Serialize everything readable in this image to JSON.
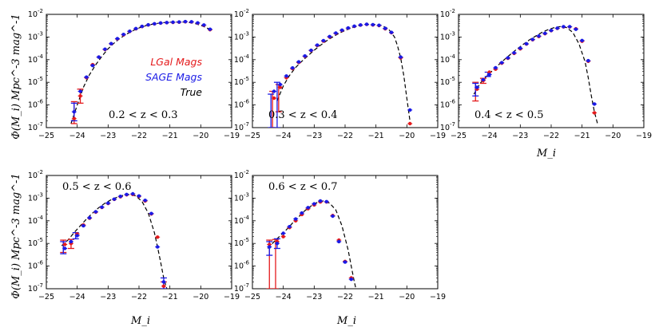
{
  "colors": {
    "lgal": "#e41a1c",
    "sage": "#1a1ae6",
    "true": "#000000"
  },
  "chart_data": {
    "type": "scatter",
    "title": "",
    "xlabel": "M_i",
    "ylabel": "Φ(M_i) Mpc^-3 mag^-1",
    "xlim": [
      -25,
      -19
    ],
    "ylim": [
      1e-07,
      0.01
    ],
    "yscale": "log",
    "x_ticks": [
      "−25",
      "−24",
      "−23",
      "−22",
      "−21",
      "−20",
      "−19"
    ],
    "y_ticks": [
      "10-7",
      "10-6",
      "10-5",
      "10-4",
      "10-3",
      "10-2"
    ],
    "legend": [
      {
        "name": "LGal Mags",
        "color": "#e41a1c"
      },
      {
        "name": "SAGE Mags",
        "color": "#1a1ae6"
      },
      {
        "name": "True",
        "color": "#000000"
      }
    ],
    "panels": [
      {
        "label": "0.2 < z < 0.3",
        "true_curve": {
          "x": [
            -24.2,
            -24.0,
            -23.8,
            -23.6,
            -23.4,
            -23.2,
            -23.0,
            -22.8,
            -22.6,
            -22.4,
            -22.2,
            -22.0,
            -21.8,
            -21.6,
            -21.4,
            -21.2,
            -21.0,
            -20.8,
            -20.6,
            -20.4,
            -20.2,
            -20.0,
            -19.8,
            -19.7
          ],
          "y": [
            1.5e-07,
            1e-06,
            6e-06,
            2.2e-05,
            6e-05,
            0.00014,
            0.0003,
            0.00055,
            0.0009,
            0.00135,
            0.0019,
            0.0025,
            0.0031,
            0.0036,
            0.004,
            0.0043,
            0.0045,
            0.0046,
            0.0046,
            0.0044,
            0.004,
            0.0033,
            0.0025,
            0.0021
          ]
        },
        "points": {
          "x": [
            -24.1,
            -23.9,
            -23.7,
            -23.5,
            -23.3,
            -23.1,
            -22.9,
            -22.7,
            -22.5,
            -22.3,
            -22.1,
            -21.9,
            -21.7,
            -21.5,
            -21.3,
            -21.1,
            -20.9,
            -20.7,
            -20.5,
            -20.3,
            -20.1,
            -19.9,
            -19.7
          ],
          "lgal": [
            2.5e-07,
            2.5e-06,
            1.6e-05,
            6e-05,
            0.00013,
            0.00028,
            0.0005,
            0.00082,
            0.00125,
            0.00175,
            0.0023,
            0.0029,
            0.0034,
            0.0038,
            0.0041,
            0.0043,
            0.0044,
            0.0045,
            0.0047,
            0.0046,
            0.0041,
            0.0033,
            0.0021
          ],
          "sage": [
            5e-07,
            4e-06,
            1.7e-05,
            5.5e-05,
            0.00013,
            0.00029,
            0.00051,
            0.00085,
            0.0013,
            0.0018,
            0.00235,
            0.00295,
            0.00345,
            0.00385,
            0.00415,
            0.00435,
            0.0045,
            0.0046,
            0.0048,
            0.0047,
            0.0042,
            0.0034,
            0.0022
          ],
          "lgal_err": [
            [
              -24.1,
              1.5e-07,
              1.4e-06
            ],
            [
              -23.9,
              1.2e-06,
              5e-06
            ]
          ],
          "sage_err": [
            [
              -24.1,
              2e-07,
              1.2e-06
            ]
          ]
        }
      },
      {
        "label": "0.3 < z < 0.4",
        "true_curve": {
          "x": [
            -24.2,
            -24.0,
            -23.8,
            -23.6,
            -23.4,
            -23.2,
            -23.0,
            -22.8,
            -22.6,
            -22.4,
            -22.2,
            -22.0,
            -21.8,
            -21.6,
            -21.4,
            -21.2,
            -21.0,
            -20.8,
            -20.6,
            -20.4,
            -20.3,
            -20.2,
            -20.1,
            -20.0,
            -19.9
          ],
          "y": [
            1.5e-06,
            7e-06,
            2e-05,
            4.5e-05,
            8.5e-05,
            0.00015,
            0.00026,
            0.00043,
            0.00068,
            0.001,
            0.00145,
            0.00195,
            0.0025,
            0.003,
            0.0034,
            0.0036,
            0.0036,
            0.0032,
            0.0023,
            0.001,
            0.0004,
            0.00012,
            2e-05,
            2e-06,
            2e-07
          ]
        },
        "points": {
          "x": [
            -24.3,
            -24.1,
            -23.9,
            -23.7,
            -23.5,
            -23.3,
            -23.1,
            -22.9,
            -22.7,
            -22.5,
            -22.3,
            -22.1,
            -21.9,
            -21.7,
            -21.5,
            -21.3,
            -21.1,
            -20.9,
            -20.7,
            -20.5,
            -20.2,
            -19.9
          ],
          "lgal": [
            2e-06,
            6e-06,
            1.6e-05,
            4e-05,
            7.5e-05,
            0.00014,
            0.00025,
            0.00042,
            0.00066,
            0.001,
            0.00145,
            0.00195,
            0.00245,
            0.00295,
            0.00335,
            0.0036,
            0.0034,
            0.0032,
            0.0023,
            0.00155,
            0.00012,
            1.5e-07
          ],
          "sage": [
            4e-06,
            8e-06,
            1.9e-05,
            4.3e-05,
            8e-05,
            0.000145,
            0.00026,
            0.00044,
            0.00069,
            0.00105,
            0.0015,
            0.002,
            0.0025,
            0.003,
            0.0034,
            0.00365,
            0.0035,
            0.0033,
            0.0024,
            0.0016,
            0.00013,
            6e-07
          ],
          "lgal_err": [
            [
              -24.35,
              1e-07,
              4e-06
            ],
            [
              -24.15,
              5e-07,
              8e-06
            ]
          ],
          "sage_err": [
            [
              -24.4,
              1e-07,
              3e-06
            ],
            [
              -24.2,
              1e-07,
              1e-05
            ]
          ]
        }
      },
      {
        "label": "0.4 < z < 0.5",
        "true_curve": {
          "x": [
            -24.5,
            -24.3,
            -24.1,
            -23.9,
            -23.7,
            -23.5,
            -23.3,
            -23.1,
            -22.9,
            -22.7,
            -22.5,
            -22.3,
            -22.1,
            -21.9,
            -21.7,
            -21.5,
            -21.3,
            -21.1,
            -20.9,
            -20.8,
            -20.7,
            -20.6,
            -20.5
          ],
          "y": [
            3e-06,
            9e-06,
            1.8e-05,
            3.3e-05,
            6e-05,
            0.000105,
            0.00018,
            0.0003,
            0.00048,
            0.00075,
            0.0011,
            0.0016,
            0.0021,
            0.0026,
            0.0029,
            0.0026,
            0.0016,
            0.0005,
            8e-05,
            1.6e-05,
            2.5e-06,
            5e-07,
            1.5e-07
          ]
        },
        "points": {
          "x": [
            -24.4,
            -24.2,
            -24.0,
            -23.8,
            -23.6,
            -23.4,
            -23.2,
            -23.0,
            -22.8,
            -22.6,
            -22.4,
            -22.2,
            -22.0,
            -21.8,
            -21.6,
            -21.4,
            -21.2,
            -21.0,
            -20.8,
            -20.6
          ],
          "lgal": [
            5e-06,
            1.2e-05,
            2.8e-05,
            3.8e-05,
            7e-05,
            0.000115,
            0.00019,
            0.0003,
            0.00049,
            0.00076,
            0.00105,
            0.0014,
            0.0019,
            0.0024,
            0.0028,
            0.0028,
            0.0023,
            0.00065,
            8.5e-05,
            4.5e-07
          ],
          "sage": [
            6e-06,
            1.3e-05,
            2.2e-05,
            4.4e-05,
            7.4e-05,
            0.00012,
            0.0002,
            0.00032,
            0.0005,
            0.00078,
            0.0011,
            0.00145,
            0.00195,
            0.00245,
            0.00285,
            0.00285,
            0.0022,
            0.0007,
            9e-05,
            1.1e-06
          ],
          "lgal_err": [
            [
              -24.45,
              1.5e-06,
              1e-05
            ],
            [
              -24.2,
              9e-06,
              1.5e-05
            ]
          ],
          "sage_err": [
            [
              -24.45,
              2.5e-06,
              9e-06
            ],
            [
              -24.05,
              1.8e-05,
              2.8e-05
            ]
          ]
        }
      },
      {
        "label": "0.5 < z < 0.6",
        "true_curve": {
          "x": [
            -24.5,
            -24.3,
            -24.1,
            -23.9,
            -23.7,
            -23.5,
            -23.3,
            -23.1,
            -22.9,
            -22.7,
            -22.5,
            -22.3,
            -22.1,
            -21.9,
            -21.7,
            -21.5,
            -21.4,
            -21.3,
            -21.2,
            -21.1,
            -21.0
          ],
          "y": [
            8e-06,
            1.4e-05,
            3e-05,
            6e-05,
            0.00012,
            0.00022,
            0.00038,
            0.0006,
            0.00085,
            0.0011,
            0.00135,
            0.00145,
            0.00125,
            0.0007,
            0.00022,
            3e-05,
            7e-06,
            1.5e-06,
            3e-07,
            1e-07,
            5e-08
          ]
        },
        "points": {
          "x": [
            -24.4,
            -24.2,
            -24.0,
            -23.8,
            -23.6,
            -23.4,
            -23.2,
            -23.0,
            -22.8,
            -22.6,
            -22.4,
            -22.2,
            -22.0,
            -21.8,
            -21.6,
            -21.4,
            -21.2
          ],
          "lgal": [
            9e-06,
            1e-05,
            2.6e-05,
            6.5e-05,
            0.00013,
            0.00024,
            0.00039,
            0.00058,
            0.00088,
            0.00115,
            0.0014,
            0.00145,
            0.0012,
            0.00075,
            0.0002,
            1.9e-05,
            1.3e-07
          ],
          "sage": [
            6e-06,
            1.2e-05,
            2.2e-05,
            6e-05,
            0.000135,
            0.00025,
            0.0004,
            0.0006,
            0.0009,
            0.0012,
            0.00145,
            0.00155,
            0.00125,
            0.0008,
            0.00021,
            7e-06,
            2e-07
          ],
          "lgal_err": [
            [
              -24.45,
              4e-06,
              1.4e-05
            ],
            [
              -24.2,
              6e-06,
              1.5e-05
            ],
            [
              -21.2,
              8e-08,
              2e-07
            ]
          ],
          "sage_err": [
            [
              -24.45,
              3.5e-06,
              1.2e-05
            ],
            [
              -24.05,
              1.6e-05,
              3e-05
            ],
            [
              -21.2,
              1e-07,
              3e-07
            ]
          ]
        }
      },
      {
        "label": "0.6 < z < 0.7",
        "true_curve": {
          "x": [
            -24.5,
            -24.3,
            -24.1,
            -23.9,
            -23.7,
            -23.5,
            -23.3,
            -23.1,
            -22.9,
            -22.7,
            -22.5,
            -22.3,
            -22.1,
            -21.9,
            -21.8,
            -21.7,
            -21.6,
            -21.5
          ],
          "y": [
            6e-06,
            1.2e-05,
            2.2e-05,
            4e-05,
            8e-05,
            0.00015,
            0.00028,
            0.00045,
            0.00065,
            0.00075,
            0.0006,
            0.0003,
            6e-05,
            5e-06,
            1e-06,
            2e-07,
            5e-08,
            1e-08
          ]
        },
        "points": {
          "x": [
            -24.45,
            -24.2,
            -24.0,
            -23.8,
            -23.6,
            -23.4,
            -23.2,
            -23.0,
            -22.8,
            -22.6,
            -22.4,
            -22.2,
            -22.0,
            -21.8
          ],
          "lgal": [
            9e-06,
            1.2e-05,
            2e-05,
            5e-05,
            0.0001,
            0.00019,
            0.00034,
            0.0005,
            0.00068,
            0.00068,
            0.00017,
            1.4e-05,
            1.6e-06,
            3e-07
          ],
          "sage": [
            7e-06,
            1e-05,
            2.8e-05,
            5.5e-05,
            0.00012,
            0.00022,
            0.00038,
            0.00056,
            0.00075,
            0.0007,
            0.00016,
            1.2e-05,
            1.5e-06,
            2.6e-07
          ],
          "lgal_err": [
            [
              -24.45,
              1e-07,
              1.4e-05
            ],
            [
              -24.25,
              1e-07,
              1.5e-05
            ]
          ],
          "sage_err": [
            [
              -24.45,
              3e-06,
              1.2e-05
            ],
            [
              -24.2,
              6e-06,
              1.6e-05
            ]
          ]
        }
      }
    ]
  }
}
